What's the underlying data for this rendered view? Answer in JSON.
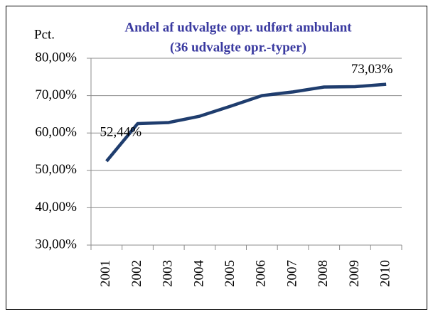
{
  "chart_data": {
    "type": "line",
    "title": [
      "Andel af udvalgte opr. udført ambulant",
      "(36 udvalgte opr.-typer)"
    ],
    "y_label": "Pct.",
    "categories": [
      "2001",
      "2002",
      "2003",
      "2004",
      "2005",
      "2006",
      "2007",
      "2008",
      "2009",
      "2010"
    ],
    "series": [
      {
        "color": "#1f3d6e",
        "values": [
          52.44,
          62.5,
          62.8,
          64.5,
          67.2,
          70.0,
          71.0,
          72.3,
          72.4,
          73.03
        ],
        "value_labels": [
          "52,44%",
          null,
          null,
          null,
          null,
          null,
          null,
          null,
          null,
          "73,03%"
        ]
      }
    ],
    "ylim": [
      30,
      80
    ],
    "yticks": [
      {
        "value": 30,
        "label": "30,00%"
      },
      {
        "value": 40,
        "label": "40,00%"
      },
      {
        "value": 50,
        "label": "50,00%"
      },
      {
        "value": 60,
        "label": "60,00%"
      },
      {
        "value": 70,
        "label": "70,00%"
      },
      {
        "value": 80,
        "label": "80,00%"
      }
    ],
    "grid": true
  }
}
